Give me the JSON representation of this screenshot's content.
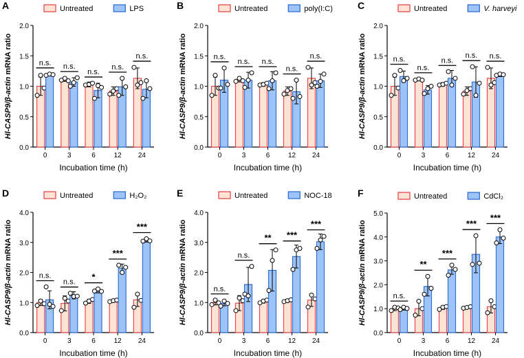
{
  "colors": {
    "untreated_fill": "#fde3d3",
    "untreated_stroke": "#e8474f",
    "treated_fill": "#9ec4f5",
    "treated_stroke": "#2f6fd6",
    "axis": "#000000"
  },
  "chart_data": [
    {
      "type": "bar",
      "panel": "A",
      "xlabel": "Incubation time (h)",
      "ylabel_italic": "Hl-CASP9/β-actin",
      "ylabel_rest": " mRNA ratio",
      "categories": [
        "0",
        "3",
        "6",
        "12",
        "24"
      ],
      "ylim": [
        0,
        2.0
      ],
      "yticks": [
        "0.0",
        "0.5",
        "1.0",
        "1.5",
        "2.0"
      ],
      "legend": "top-left",
      "series": [
        {
          "name": "Untreated",
          "name_italic": false,
          "values": [
            1.0,
            1.11,
            1.03,
            0.92,
            1.13
          ],
          "errors": [
            0.15,
            0.03,
            0.04,
            0.07,
            0.17
          ],
          "points": [
            [
              0.85,
              1.18,
              0.97
            ],
            [
              1.1,
              1.13,
              1.09
            ],
            [
              1.02,
              1.03,
              1.05
            ],
            [
              0.87,
              0.92,
              0.96
            ],
            [
              1.31,
              1.02,
              1.06
            ]
          ]
        },
        {
          "name": "LPS",
          "name_italic": false,
          "values": [
            1.19,
            1.07,
            0.93,
            0.99,
            0.95
          ],
          "errors": [
            0.02,
            0.07,
            0.12,
            0.14,
            0.14
          ],
          "points": [
            [
              1.18,
              1.2,
              1.19
            ],
            [
              1.0,
              1.06,
              1.14
            ],
            [
              0.8,
              1.01,
              0.98
            ],
            [
              0.85,
              1.13,
              0.99
            ],
            [
              0.8,
              1.09,
              0.96
            ]
          ]
        }
      ],
      "significance": [
        "n.s.",
        "n.s.",
        "n.s.",
        "n.s.",
        "n.s."
      ]
    },
    {
      "type": "bar",
      "panel": "B",
      "xlabel": "Incubation time (h)",
      "ylabel_italic": "Hl-CASP9/β-actin",
      "ylabel_rest": " mRNA ratio",
      "categories": [
        "0",
        "3",
        "6",
        "12",
        "24"
      ],
      "ylim": [
        0,
        2.0
      ],
      "yticks": [
        "0.0",
        "0.5",
        "1.0",
        "1.5",
        "2.0"
      ],
      "legend": "top-left",
      "series": [
        {
          "name": "Untreated",
          "name_italic": false,
          "values": [
            1.0,
            1.1,
            1.03,
            0.92,
            1.13
          ],
          "errors": [
            0.15,
            0.03,
            0.03,
            0.07,
            0.17
          ],
          "points": [
            [
              0.85,
              1.18,
              0.97
            ],
            [
              1.08,
              1.13,
              1.09
            ],
            [
              1.02,
              1.03,
              1.05
            ],
            [
              0.87,
              0.93,
              0.96
            ],
            [
              1.31,
              1.02,
              1.06
            ]
          ]
        },
        {
          "name": "poly(I:C)",
          "name_italic": false,
          "values": [
            1.1,
            1.1,
            1.09,
            0.91,
            1.09
          ],
          "errors": [
            0.2,
            0.13,
            0.15,
            0.2,
            0.11
          ],
          "points": [
            [
              0.97,
              1.3,
              1.03
            ],
            [
              0.98,
              1.1,
              1.22
            ],
            [
              0.96,
              1.09,
              1.22
            ],
            [
              0.8,
              1.1,
              0.83
            ],
            [
              1.0,
              1.08,
              1.2
            ]
          ]
        }
      ],
      "significance": [
        "n.s.",
        "n.s.",
        "n.s.",
        "n.s.",
        "n.s."
      ]
    },
    {
      "type": "bar",
      "panel": "C",
      "xlabel": "Incubation time (h)",
      "ylabel_italic": "Hl-CASP9/β-actin",
      "ylabel_rest": " mRNA ratio",
      "categories": [
        "0",
        "3",
        "6",
        "12",
        "24"
      ],
      "ylim": [
        0,
        2.0
      ],
      "yticks": [
        "0.0",
        "0.5",
        "1.0",
        "1.5",
        "2.0"
      ],
      "legend": "top-left",
      "series": [
        {
          "name": "Untreated",
          "name_italic": false,
          "values": [
            1.0,
            1.11,
            1.03,
            0.92,
            1.13
          ],
          "errors": [
            0.15,
            0.02,
            0.03,
            0.07,
            0.17
          ],
          "points": [
            [
              0.85,
              1.18,
              0.97
            ],
            [
              1.1,
              1.12,
              1.1
            ],
            [
              1.02,
              1.03,
              1.05
            ],
            [
              0.87,
              0.93,
              0.96
            ],
            [
              1.31,
              1.02,
              1.06
            ]
          ]
        },
        {
          "name": "V. harveyi",
          "name_italic": true,
          "values": [
            1.16,
            0.94,
            1.13,
            1.07,
            1.19
          ],
          "errors": [
            0.09,
            0.07,
            0.13,
            0.25,
            0.03
          ],
          "points": [
            [
              1.26,
              1.09,
              1.13
            ],
            [
              0.88,
              0.96,
              1.0
            ],
            [
              1.24,
              1.02,
              1.13
            ],
            [
              1.32,
              0.85,
              1.05
            ],
            [
              1.18,
              1.2,
              1.19
            ]
          ]
        }
      ],
      "significance": [
        "n.s.",
        "n.s.",
        "n.s.",
        "n.s.",
        "n.s."
      ]
    },
    {
      "type": "bar",
      "panel": "D",
      "xlabel": "Incubation time (h)",
      "ylabel_italic": "Hl-CASP9/β-actin",
      "ylabel_rest": " mRNA ratio",
      "categories": [
        "0",
        "3",
        "6",
        "12",
        "24"
      ],
      "ylim": [
        0,
        4.0
      ],
      "yticks": [
        "0.0",
        "1.0",
        "2.0",
        "3.0",
        "4.0"
      ],
      "legend": "top-left",
      "series": [
        {
          "name": "Untreated",
          "name_italic": false,
          "values": [
            1.0,
            0.97,
            1.04,
            1.06,
            1.09
          ],
          "errors": [
            0.1,
            0.25,
            0.07,
            0.04,
            0.22
          ],
          "points": [
            [
              0.9,
              1.05,
              0.96
            ],
            [
              0.73,
              1.14,
              1.05
            ],
            [
              0.98,
              1.05,
              1.1
            ],
            [
              1.03,
              1.06,
              1.08
            ],
            [
              0.84,
              1.28,
              1.07
            ]
          ]
        },
        {
          "name": "H₂O₂",
          "name_italic": false,
          "values": [
            1.09,
            1.24,
            1.4,
            2.14,
            3.07
          ],
          "errors": [
            0.3,
            0.12,
            0.08,
            0.14,
            0.06
          ],
          "points": [
            [
              1.52,
              0.94,
              0.87
            ],
            [
              1.31,
              1.2,
              1.21
            ],
            [
              1.38,
              1.45,
              1.37
            ],
            [
              2.24,
              2.0,
              2.17
            ],
            [
              3.04,
              3.12,
              3.05
            ]
          ]
        }
      ],
      "significance": [
        "n.s.",
        "n.s.",
        "*",
        "***",
        "***"
      ]
    },
    {
      "type": "bar",
      "panel": "E",
      "xlabel": "Incubation time (h)",
      "ylabel_italic": "Hl-CASP9/β-actin",
      "ylabel_rest": " mRNA ratio",
      "categories": [
        "0",
        "3",
        "6",
        "12",
        "24"
      ],
      "ylim": [
        0,
        4.0
      ],
      "yticks": [
        "0.0",
        "1.0",
        "2.0",
        "3.0",
        "4.0"
      ],
      "legend": "top-left",
      "series": [
        {
          "name": "Untreated",
          "name_italic": false,
          "values": [
            1.0,
            0.98,
            1.04,
            1.06,
            1.08
          ],
          "errors": [
            0.08,
            0.25,
            0.06,
            0.05,
            0.21
          ],
          "points": [
            [
              0.93,
              1.08,
              0.99
            ],
            [
              0.73,
              1.15,
              1.06
            ],
            [
              0.99,
              1.05,
              1.08
            ],
            [
              1.03,
              1.06,
              1.09
            ],
            [
              0.85,
              1.25,
              1.12
            ]
          ]
        },
        {
          "name": "NOC-18",
          "name_italic": false,
          "values": [
            0.97,
            1.6,
            2.07,
            2.53,
            3.02
          ],
          "errors": [
            0.08,
            0.57,
            0.69,
            0.38,
            0.26
          ],
          "points": [
            [
              0.88,
              1.05,
              0.97
            ],
            [
              1.28,
              1.22,
              2.2
            ],
            [
              1.4,
              2.4,
              2.75
            ],
            [
              2.1,
              2.75,
              2.8
            ],
            [
              2.8,
              3.08,
              3.2
            ]
          ]
        }
      ],
      "significance": [
        "n.s.",
        "n.s.",
        "**",
        "***",
        "***"
      ]
    },
    {
      "type": "bar",
      "panel": "F",
      "xlabel": "Incubation time (h)",
      "ylabel_italic": "Hl-CASP9/β-actin",
      "ylabel_rest": " mRNA ratio",
      "categories": [
        "0",
        "3",
        "6",
        "12",
        "24"
      ],
      "ylim": [
        0,
        5.0
      ],
      "yticks": [
        "0.0",
        "1.0",
        "2.0",
        "3.0",
        "4.0",
        "5.0"
      ],
      "legend": "top-left",
      "series": [
        {
          "name": "Untreated",
          "name_italic": false,
          "values": [
            1.0,
            1.0,
            1.04,
            1.05,
            1.08
          ],
          "errors": [
            0.08,
            0.3,
            0.07,
            0.04,
            0.26
          ],
          "points": [
            [
              0.92,
              1.06,
              1.03
            ],
            [
              0.73,
              1.31,
              1.0
            ],
            [
              0.97,
              1.06,
              1.09
            ],
            [
              1.02,
              1.05,
              1.08
            ],
            [
              0.83,
              1.33,
              1.08
            ]
          ]
        },
        {
          "name": "CdCl₂",
          "name_italic": false,
          "values": [
            1.01,
            1.93,
            2.62,
            3.27,
            4.0
          ],
          "errors": [
            0.07,
            0.4,
            0.18,
            0.77,
            0.28
          ],
          "points": [
            [
              0.96,
              1.06,
              1.01
            ],
            [
              1.6,
              2.35,
              1.85
            ],
            [
              2.4,
              2.82,
              2.64
            ],
            [
              2.85,
              4.05,
              2.9
            ],
            [
              3.75,
              4.3,
              3.95
            ]
          ]
        }
      ],
      "significance": [
        "n.s.",
        "**",
        "***",
        "***",
        "***"
      ]
    }
  ]
}
